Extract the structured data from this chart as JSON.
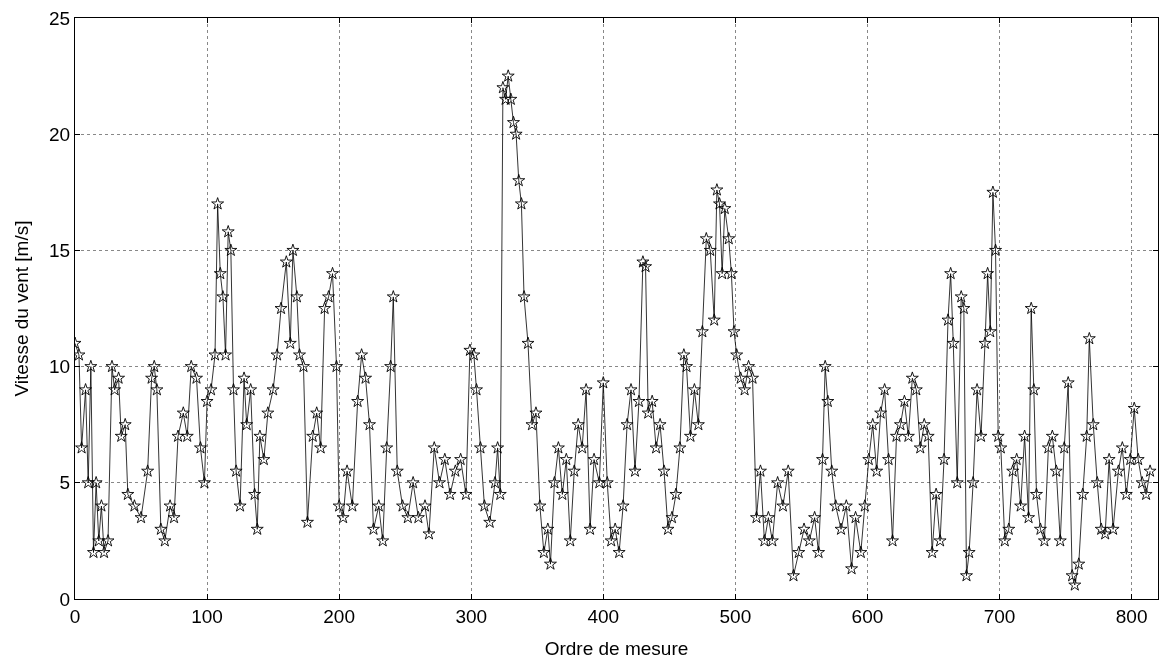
{
  "chart_data": {
    "type": "line",
    "xlabel": "Ordre de mesure",
    "ylabel": "Vitesse du vent [m/s]",
    "xlim": [
      0,
      820
    ],
    "ylim": [
      0,
      25
    ],
    "xticks": [
      0,
      100,
      200,
      300,
      400,
      500,
      600,
      700,
      800
    ],
    "yticks": [
      0,
      5,
      10,
      15,
      20,
      25
    ],
    "grid": true,
    "marker": "star",
    "line_style": "solid",
    "series": [
      {
        "color": "#000000",
        "x": [
          0,
          3,
          5,
          8,
          10,
          12,
          14,
          16,
          18,
          20,
          22,
          25,
          28,
          30,
          33,
          35,
          38,
          40,
          45,
          50,
          55,
          58,
          60,
          62,
          65,
          68,
          72,
          75,
          78,
          82,
          85,
          88,
          92,
          95,
          98,
          100,
          103,
          106,
          108,
          110,
          112,
          114,
          116,
          118,
          120,
          122,
          125,
          128,
          130,
          133,
          136,
          138,
          140,
          143,
          146,
          150,
          153,
          156,
          160,
          163,
          165,
          168,
          170,
          173,
          176,
          180,
          183,
          186,
          189,
          192,
          195,
          198,
          200,
          203,
          206,
          210,
          214,
          217,
          220,
          223,
          226,
          230,
          233,
          236,
          239,
          241,
          244,
          248,
          252,
          256,
          260,
          265,
          268,
          272,
          276,
          280,
          284,
          288,
          292,
          296,
          299,
          302,
          304,
          307,
          310,
          314,
          318,
          320,
          322,
          324,
          326,
          328,
          330,
          332,
          334,
          336,
          338,
          340,
          343,
          346,
          349,
          352,
          355,
          358,
          360,
          363,
          366,
          369,
          372,
          375,
          378,
          381,
          384,
          387,
          390,
          393,
          397,
          400,
          403,
          406,
          409,
          412,
          415,
          418,
          421,
          424,
          427,
          430,
          432,
          434,
          437,
          440,
          443,
          446,
          449,
          452,
          455,
          458,
          461,
          463,
          466,
          469,
          472,
          475,
          478,
          481,
          484,
          486,
          488,
          490,
          492,
          495,
          497,
          499,
          501,
          504,
          507,
          510,
          513,
          516,
          519,
          522,
          525,
          528,
          532,
          536,
          540,
          544,
          548,
          552,
          556,
          560,
          563,
          566,
          568,
          570,
          573,
          576,
          580,
          584,
          588,
          591,
          595,
          598,
          601,
          604,
          607,
          610,
          613,
          616,
          619,
          622,
          625,
          628,
          631,
          634,
          637,
          640,
          643,
          646,
          649,
          652,
          655,
          658,
          661,
          663,
          665,
          668,
          671,
          673,
          675,
          677,
          680,
          683,
          686,
          689,
          691,
          693,
          695,
          697,
          699,
          701,
          704,
          707,
          710,
          713,
          716,
          719,
          722,
          724,
          726,
          728,
          731,
          734,
          737,
          740,
          743,
          746,
          749,
          752,
          755,
          757,
          760,
          763,
          766,
          768,
          771,
          774,
          777,
          780,
          783,
          786,
          790,
          793,
          796,
          799,
          802,
          805,
          808,
          811,
          814
        ],
        "values": [
          11,
          10.5,
          6.5,
          9,
          5,
          10,
          2,
          5,
          2.5,
          4,
          2,
          2.5,
          10,
          9,
          9.5,
          7,
          7.5,
          4.5,
          4,
          3.5,
          5.5,
          9.5,
          10,
          9,
          3,
          2.5,
          4,
          3.5,
          7,
          8,
          7,
          10,
          9.5,
          6.5,
          5,
          8.5,
          9,
          10.5,
          17,
          14,
          13,
          10.5,
          15.8,
          15,
          9,
          5.5,
          4,
          9.5,
          7.5,
          9,
          4.5,
          3,
          7,
          6,
          8,
          9,
          10.5,
          12.5,
          14.5,
          11,
          15,
          13,
          10.5,
          10,
          3.3,
          7,
          8,
          6.5,
          12.5,
          13,
          14,
          10,
          4,
          3.5,
          5.5,
          4,
          8.5,
          10.5,
          9.5,
          7.5,
          3,
          4,
          2.5,
          6.5,
          10,
          13,
          5.5,
          4,
          3.5,
          5,
          3.5,
          4,
          2.8,
          6.5,
          5,
          6,
          4.5,
          5.5,
          6,
          4.5,
          10.7,
          10.5,
          9,
          6.5,
          4,
          3.3,
          5,
          6.5,
          4.5,
          22,
          21.5,
          22.5,
          21.5,
          20.5,
          20,
          18,
          17,
          13,
          11,
          7.5,
          8,
          4,
          2,
          3,
          1.5,
          5,
          6.5,
          4.5,
          6,
          2.5,
          5.5,
          7.5,
          6.5,
          9,
          3,
          6,
          5,
          9.3,
          5,
          2.5,
          3,
          2,
          4,
          7.5,
          9,
          5.5,
          8.5,
          14.5,
          14.3,
          8,
          8.5,
          6.5,
          7.5,
          5.5,
          3,
          3.5,
          4.5,
          6.5,
          10.5,
          10,
          7,
          9,
          7.5,
          11.5,
          15.5,
          15,
          12,
          17.6,
          17,
          14,
          16.8,
          15.5,
          14,
          11.5,
          10.5,
          9.5,
          9,
          10,
          9.5,
          3.5,
          5.5,
          2.5,
          3.5,
          2.5,
          5,
          4,
          5.5,
          1,
          2,
          3,
          2.5,
          3.5,
          2,
          6,
          10,
          8.5,
          5.5,
          4,
          3,
          4,
          1.3,
          3.5,
          2,
          4,
          6,
          7.5,
          5.5,
          8,
          9,
          6,
          2.5,
          7,
          7.5,
          8.5,
          7,
          9.5,
          9,
          6.5,
          7.5,
          7,
          2,
          4.5,
          2.5,
          6,
          12,
          14,
          11,
          5,
          13,
          12.5,
          1,
          2,
          5,
          9,
          7,
          11,
          14,
          11.5,
          17.5,
          15,
          7,
          6.5,
          2.5,
          3,
          5.5,
          6,
          4,
          7,
          3.5,
          12.5,
          9,
          4.5,
          3,
          2.5,
          6.5,
          7,
          5.5,
          2.5,
          6.5,
          9.3,
          1,
          0.6,
          1.5,
          4.5,
          7,
          11.2,
          7.5,
          5,
          3,
          2.8,
          6,
          3,
          5.5,
          6.5,
          4.5,
          6,
          8.2,
          6,
          5,
          4.5,
          5.5
        ]
      }
    ]
  }
}
